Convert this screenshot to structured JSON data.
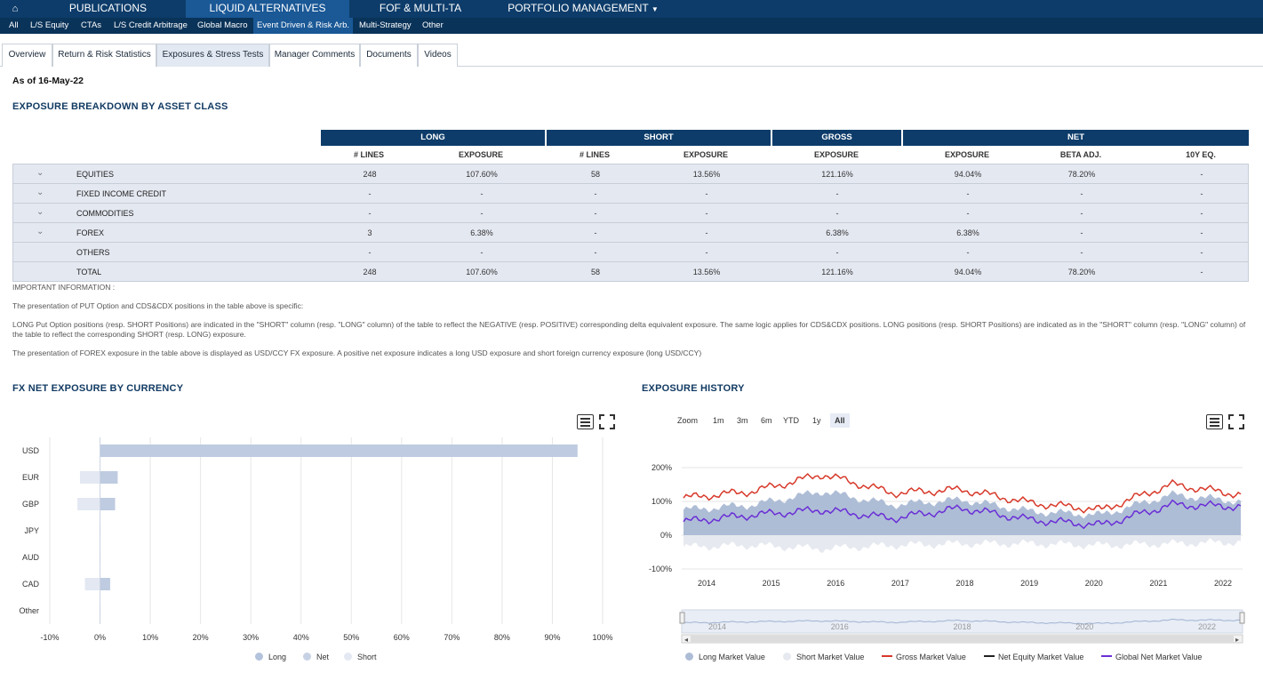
{
  "nav": {
    "home_icon": "home-icon",
    "items": [
      {
        "label": "PUBLICATIONS"
      },
      {
        "label": "LIQUID ALTERNATIVES"
      },
      {
        "label": "FOF & MULTI-TA"
      },
      {
        "label": "PORTFOLIO MANAGEMENT"
      }
    ],
    "active_index": 1
  },
  "subnav": {
    "items": [
      {
        "label": "All"
      },
      {
        "label": "L/S Equity"
      },
      {
        "label": "CTAs"
      },
      {
        "label": "L/S Credit Arbitrage"
      },
      {
        "label": "Global Macro"
      },
      {
        "label": "Event Driven & Risk Arb."
      },
      {
        "label": "Multi-Strategy"
      },
      {
        "label": "Other"
      }
    ],
    "active_index": 5
  },
  "tabs": {
    "items": [
      {
        "label": "Overview"
      },
      {
        "label": "Return & Risk Statistics"
      },
      {
        "label": "Exposures & Stress Tests"
      },
      {
        "label": "Manager Comments"
      },
      {
        "label": "Documents"
      },
      {
        "label": "Videos"
      }
    ],
    "active_index": 2
  },
  "as_of": "As of 16-May-22",
  "breakdown": {
    "title": "EXPOSURE BREAKDOWN BY ASSET CLASS",
    "groups": [
      "LONG",
      "SHORT",
      "GROSS",
      "NET"
    ],
    "columns": [
      "# LINES",
      "EXPOSURE",
      "# LINES",
      "EXPOSURE",
      "EXPOSURE",
      "EXPOSURE",
      "BETA ADJ.",
      "10Y EQ."
    ],
    "rows": [
      {
        "label": "EQUITIES",
        "values": [
          "248",
          "107.60%",
          "58",
          "13.56%",
          "121.16%",
          "94.04%",
          "78.20%",
          "-"
        ]
      },
      {
        "label": "FIXED INCOME CREDIT",
        "values": [
          "-",
          "-",
          "-",
          "-",
          "-",
          "-",
          "-",
          "-"
        ]
      },
      {
        "label": "COMMODITIES",
        "values": [
          "-",
          "-",
          "-",
          "-",
          "-",
          "-",
          "-",
          "-"
        ]
      },
      {
        "label": "FOREX",
        "values": [
          "3",
          "6.38%",
          "-",
          "-",
          "6.38%",
          "6.38%",
          "-",
          "-"
        ]
      },
      {
        "label": "OTHERS",
        "values": [
          "-",
          "-",
          "-",
          "-",
          "-",
          "-",
          "-",
          "-"
        ]
      },
      {
        "label": "TOTAL",
        "values": [
          "248",
          "107.60%",
          "58",
          "13.56%",
          "121.16%",
          "94.04%",
          "78.20%",
          "-"
        ]
      }
    ]
  },
  "info": {
    "heading": "IMPORTANT INFORMATION :",
    "p1": "The presentation of PUT Option and CDS&CDX positions in the table above is specific:",
    "p2": "LONG Put Option positions (resp. SHORT Positions) are indicated in the \"SHORT\" column (resp. \"LONG\" column) of the table to reflect the NEGATIVE (resp. POSITIVE) corresponding delta equivalent exposure. The same logic applies for CDS&CDX positions. LONG positions (resp. SHORT Positions) are indicated as in the \"SHORT\" column (resp. \"LONG\" column) of the table to reflect the corresponding SHORT (resp. LONG) exposure.",
    "p3": "The presentation of FOREX exposure in the table above is displayed as USD/CCY FX exposure. A positive net exposure indicates a long USD exposure and short foreign currency exposure (long USD/CCY)"
  },
  "fx_title": "FX NET EXPOSURE BY CURRENCY",
  "history_title": "EXPOSURE HISTORY",
  "history": {
    "zoom_label": "Zoom",
    "zoom_buttons": [
      "1m",
      "3m",
      "6m",
      "YTD",
      "1y",
      "All"
    ],
    "zoom_selected": 5,
    "legend": [
      "Long Market Value",
      "Short Market Value",
      "Gross Market Value",
      "Net Equity Market Value",
      "Global Net Market Value"
    ]
  },
  "chart_data": [
    {
      "type": "bar",
      "orientation": "horizontal",
      "categories": [
        "USD",
        "EUR",
        "GBP",
        "JPY",
        "AUD",
        "CAD",
        "Other"
      ],
      "series": [
        {
          "name": "Long",
          "values": [
            95,
            3.5,
            3,
            0,
            0,
            2,
            0
          ]
        },
        {
          "name": "Net",
          "values": [
            95,
            3.5,
            3,
            0,
            0,
            2,
            0
          ]
        },
        {
          "name": "Short",
          "values": [
            0,
            -4,
            -4.5,
            0,
            0,
            -3,
            0
          ]
        }
      ],
      "xlim": [
        -10,
        100
      ],
      "xticks": [
        "-10%",
        "0%",
        "10%",
        "20%",
        "30%",
        "40%",
        "50%",
        "60%",
        "70%",
        "80%",
        "90%",
        "100%"
      ],
      "legend_position": "bottom-center",
      "grid": true,
      "colors": {
        "Long": "#b4c3dc",
        "Net": "#c7d1e4",
        "Short": "#e3e8f2"
      }
    },
    {
      "type": "line",
      "x": [
        "2014",
        "2015",
        "2016",
        "2017",
        "2018",
        "2019",
        "2020",
        "2021",
        "2022"
      ],
      "yticks": [
        "200%",
        "100%",
        "0%",
        "-100%"
      ],
      "ylim": [
        -100,
        200
      ],
      "series": [
        {
          "name": "Gross Market Value",
          "values": [
            110,
            130,
            180,
            125,
            135,
            95,
            75,
            150,
            120
          ],
          "color": "#d7392a"
        },
        {
          "name": "Global Net Market Value",
          "values": [
            40,
            60,
            75,
            50,
            80,
            45,
            30,
            90,
            85
          ],
          "color": "#6a2fd6"
        },
        {
          "name": "Long Market Value",
          "values": [
            75,
            90,
            130,
            90,
            105,
            70,
            60,
            120,
            100
          ],
          "color": "#aebdd6"
        },
        {
          "name": "Short Market Value",
          "values": [
            -35,
            -30,
            -40,
            -30,
            -25,
            -25,
            -30,
            -25,
            -20
          ],
          "color": "#e6e9ef"
        }
      ],
      "navigator_ticks": [
        "2014",
        "2016",
        "2018",
        "2020",
        "2022"
      ],
      "legend_position": "bottom-center",
      "grid": true
    }
  ]
}
